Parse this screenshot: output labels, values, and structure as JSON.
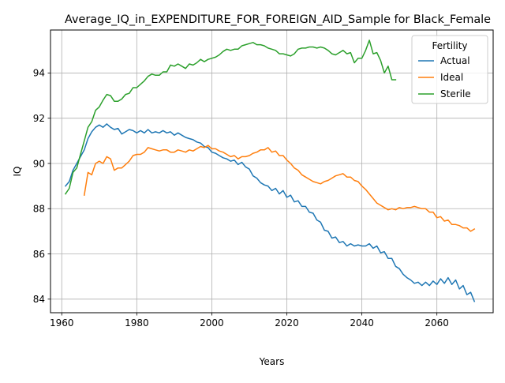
{
  "chart_data": {
    "type": "line",
    "title": "Average_IQ_in_EXPENDITURE_FOR_FOREIGN_AID_Sample for Black_Female",
    "xlabel": "Years",
    "ylabel": "IQ",
    "xlim": [
      1957,
      2075
    ],
    "ylim": [
      83.4,
      95.9
    ],
    "xticks": [
      1960,
      1980,
      2000,
      2020,
      2040,
      2060
    ],
    "yticks": [
      84,
      86,
      88,
      90,
      92,
      94
    ],
    "grid": true,
    "legend": {
      "title": "Fertility",
      "placement": "top-right"
    },
    "series": [
      {
        "name": "Actual",
        "color": "#1f77b4",
        "x": [
          1961,
          1962,
          1963,
          1964,
          1965,
          1966,
          1967,
          1968,
          1969,
          1970,
          1971,
          1972,
          1973,
          1974,
          1975,
          1976,
          1977,
          1978,
          1979,
          1980,
          1981,
          1982,
          1983,
          1984,
          1985,
          1986,
          1987,
          1988,
          1989,
          1990,
          1991,
          1992,
          1993,
          1994,
          1995,
          1996,
          1997,
          1998,
          1999,
          2000,
          2001,
          2002,
          2003,
          2004,
          2005,
          2006,
          2007,
          2008,
          2009,
          2010,
          2011,
          2012,
          2013,
          2014,
          2015,
          2016,
          2017,
          2018,
          2019,
          2020,
          2021,
          2022,
          2023,
          2024,
          2025,
          2026,
          2027,
          2028,
          2029,
          2030,
          2031,
          2032,
          2033,
          2034,
          2035,
          2036,
          2037,
          2038,
          2039,
          2040,
          2041,
          2042,
          2043,
          2044,
          2045,
          2046,
          2047,
          2048,
          2049,
          2050,
          2051,
          2052,
          2053,
          2054,
          2055,
          2056,
          2057,
          2058,
          2059,
          2060,
          2061,
          2062,
          2063,
          2064,
          2065,
          2066,
          2067,
          2068,
          2069,
          2070
        ],
        "values": [
          89.0,
          89.2,
          89.7,
          90.0,
          90.3,
          90.6,
          91.1,
          91.4,
          91.6,
          91.7,
          91.6,
          91.75,
          91.6,
          91.5,
          91.55,
          91.3,
          91.4,
          91.5,
          91.45,
          91.35,
          91.45,
          91.35,
          91.5,
          91.35,
          91.4,
          91.35,
          91.45,
          91.35,
          91.4,
          91.25,
          91.35,
          91.25,
          91.15,
          91.1,
          91.05,
          90.95,
          90.9,
          90.75,
          90.7,
          90.5,
          90.45,
          90.35,
          90.25,
          90.2,
          90.1,
          90.15,
          89.95,
          90.05,
          89.85,
          89.75,
          89.45,
          89.35,
          89.15,
          89.05,
          89.0,
          88.8,
          88.9,
          88.65,
          88.8,
          88.5,
          88.6,
          88.3,
          88.35,
          88.1,
          88.1,
          87.85,
          87.8,
          87.5,
          87.4,
          87.05,
          87.0,
          86.7,
          86.75,
          86.5,
          86.55,
          86.35,
          86.45,
          86.35,
          86.4,
          86.35,
          86.35,
          86.45,
          86.25,
          86.35,
          86.05,
          86.1,
          85.8,
          85.8,
          85.45,
          85.35,
          85.1,
          84.95,
          84.85,
          84.7,
          84.75,
          84.6,
          84.75,
          84.6,
          84.8,
          84.65,
          84.9,
          84.7,
          84.95,
          84.65,
          84.85,
          84.45,
          84.6,
          84.2,
          84.3,
          83.9
        ]
      },
      {
        "name": "Ideal",
        "color": "#ff7f0e",
        "x": [
          1966,
          1967,
          1968,
          1969,
          1970,
          1971,
          1972,
          1973,
          1974,
          1975,
          1976,
          1977,
          1978,
          1979,
          1980,
          1981,
          1982,
          1983,
          1984,
          1985,
          1986,
          1987,
          1988,
          1989,
          1990,
          1991,
          1992,
          1993,
          1994,
          1995,
          1996,
          1997,
          1998,
          1999,
          2000,
          2001,
          2002,
          2003,
          2004,
          2005,
          2006,
          2007,
          2008,
          2009,
          2010,
          2011,
          2012,
          2013,
          2014,
          2015,
          2016,
          2017,
          2018,
          2019,
          2020,
          2021,
          2022,
          2023,
          2024,
          2025,
          2026,
          2027,
          2028,
          2029,
          2030,
          2031,
          2032,
          2033,
          2034,
          2035,
          2036,
          2037,
          2038,
          2039,
          2040,
          2041,
          2042,
          2043,
          2044,
          2045,
          2046,
          2047,
          2048,
          2049,
          2050,
          2051,
          2052,
          2053,
          2054,
          2055,
          2056,
          2057,
          2058,
          2059,
          2060,
          2061,
          2062,
          2063,
          2064,
          2065,
          2066,
          2067,
          2068,
          2069,
          2070
        ],
        "values": [
          88.6,
          89.6,
          89.5,
          90.0,
          90.1,
          90.0,
          90.3,
          90.2,
          89.7,
          89.8,
          89.8,
          89.95,
          90.1,
          90.35,
          90.4,
          90.4,
          90.5,
          90.7,
          90.65,
          90.6,
          90.55,
          90.6,
          90.6,
          90.5,
          90.5,
          90.6,
          90.55,
          90.5,
          90.6,
          90.55,
          90.65,
          90.75,
          90.7,
          90.8,
          90.65,
          90.65,
          90.55,
          90.5,
          90.4,
          90.3,
          90.35,
          90.2,
          90.3,
          90.3,
          90.35,
          90.45,
          90.5,
          90.6,
          90.6,
          90.7,
          90.5,
          90.55,
          90.35,
          90.35,
          90.15,
          90.0,
          89.8,
          89.7,
          89.5,
          89.4,
          89.3,
          89.2,
          89.15,
          89.1,
          89.2,
          89.25,
          89.35,
          89.45,
          89.5,
          89.55,
          89.4,
          89.4,
          89.25,
          89.2,
          89.0,
          88.85,
          88.65,
          88.45,
          88.25,
          88.15,
          88.05,
          87.95,
          88.0,
          87.95,
          88.05,
          88.0,
          88.05,
          88.05,
          88.1,
          88.05,
          88.0,
          88.0,
          87.85,
          87.85,
          87.6,
          87.65,
          87.45,
          87.5,
          87.3,
          87.3,
          87.25,
          87.15,
          87.15,
          87.0,
          87.1
        ]
      },
      {
        "name": "Sterile",
        "color": "#2ca02c",
        "x": [
          1961,
          1962,
          1963,
          1964,
          1965,
          1966,
          1967,
          1968,
          1969,
          1970,
          1971,
          1972,
          1973,
          1974,
          1975,
          1976,
          1977,
          1978,
          1979,
          1980,
          1981,
          1982,
          1983,
          1984,
          1985,
          1986,
          1987,
          1988,
          1989,
          1990,
          1991,
          1992,
          1993,
          1994,
          1995,
          1996,
          1997,
          1998,
          1999,
          2000,
          2001,
          2002,
          2003,
          2004,
          2005,
          2006,
          2007,
          2008,
          2009,
          2010,
          2011,
          2012,
          2013,
          2014,
          2015,
          2016,
          2017,
          2018,
          2019,
          2020,
          2021,
          2022,
          2023,
          2024,
          2025,
          2026,
          2027,
          2028,
          2029,
          2030,
          2031,
          2032,
          2033,
          2034,
          2035,
          2036,
          2037,
          2038,
          2039,
          2040,
          2041,
          2042,
          2043,
          2044,
          2045,
          2046,
          2047,
          2048,
          2049
        ],
        "values": [
          88.65,
          88.9,
          89.6,
          89.8,
          90.4,
          91.0,
          91.6,
          91.85,
          92.35,
          92.5,
          92.8,
          93.05,
          93.0,
          92.75,
          92.75,
          92.85,
          93.05,
          93.1,
          93.35,
          93.35,
          93.5,
          93.65,
          93.85,
          93.95,
          93.9,
          93.9,
          94.05,
          94.05,
          94.35,
          94.3,
          94.4,
          94.3,
          94.2,
          94.4,
          94.35,
          94.45,
          94.6,
          94.5,
          94.6,
          94.65,
          94.7,
          94.8,
          94.95,
          95.05,
          95.0,
          95.05,
          95.05,
          95.2,
          95.25,
          95.3,
          95.35,
          95.25,
          95.25,
          95.2,
          95.1,
          95.05,
          95.0,
          94.85,
          94.85,
          94.8,
          94.75,
          94.85,
          95.05,
          95.1,
          95.1,
          95.15,
          95.15,
          95.1,
          95.15,
          95.1,
          95.0,
          94.85,
          94.8,
          94.9,
          95.0,
          94.85,
          94.9,
          94.45,
          94.65,
          94.65,
          95.0,
          95.45,
          94.85,
          94.9,
          94.55,
          94.0,
          94.3,
          93.7,
          93.7
        ]
      }
    ]
  }
}
